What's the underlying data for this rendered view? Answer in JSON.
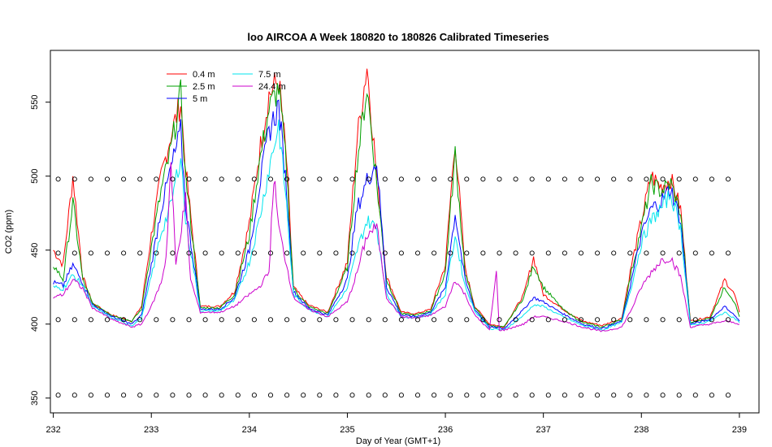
{
  "chart_data": {
    "type": "line",
    "title": "loo AIRCOA A  Week 180820 to 180826  Calibrated Timeseries",
    "xlabel": "Day of Year (GMT+1)",
    "ylabel": "CO2 (ppm)",
    "xlim": [
      231.97,
      239.2
    ],
    "ylim": [
      340,
      585
    ],
    "x_ticks": [
      "232",
      "233",
      "234",
      "235",
      "236",
      "237",
      "238",
      "239"
    ],
    "y_ticks": [
      "350",
      "400",
      "450",
      "500",
      "550"
    ],
    "grid": false,
    "legend_position": "top-left",
    "series": [
      {
        "name": "0.4 m",
        "color": "#ff0000",
        "points": [
          [
            232.0,
            450
          ],
          [
            232.1,
            440
          ],
          [
            232.2,
            500
          ],
          [
            232.3,
            432
          ],
          [
            232.4,
            414
          ],
          [
            232.6,
            406
          ],
          [
            232.8,
            402
          ],
          [
            232.9,
            412
          ],
          [
            233.0,
            460
          ],
          [
            233.1,
            500
          ],
          [
            233.2,
            528
          ],
          [
            233.3,
            550
          ],
          [
            233.35,
            505
          ],
          [
            233.5,
            412
          ],
          [
            233.7,
            412
          ],
          [
            233.85,
            422
          ],
          [
            234.0,
            468
          ],
          [
            234.1,
            515
          ],
          [
            234.2,
            555
          ],
          [
            234.3,
            565
          ],
          [
            234.38,
            510
          ],
          [
            234.45,
            425
          ],
          [
            234.6,
            413
          ],
          [
            234.8,
            408
          ],
          [
            235.0,
            442
          ],
          [
            235.1,
            525
          ],
          [
            235.2,
            575
          ],
          [
            235.3,
            500
          ],
          [
            235.4,
            432
          ],
          [
            235.55,
            408
          ],
          [
            235.7,
            407
          ],
          [
            235.85,
            410
          ],
          [
            236.0,
            440
          ],
          [
            236.1,
            525
          ],
          [
            236.2,
            438
          ],
          [
            236.3,
            412
          ],
          [
            236.45,
            400
          ],
          [
            236.6,
            398
          ],
          [
            236.8,
            420
          ],
          [
            236.9,
            445
          ],
          [
            237.0,
            420
          ],
          [
            237.2,
            410
          ],
          [
            237.4,
            402
          ],
          [
            237.6,
            399
          ],
          [
            237.8,
            404
          ],
          [
            237.9,
            440
          ],
          [
            238.0,
            470
          ],
          [
            238.1,
            500
          ],
          [
            238.2,
            493
          ],
          [
            238.3,
            498
          ],
          [
            238.4,
            478
          ],
          [
            238.5,
            402
          ],
          [
            238.7,
            405
          ],
          [
            238.85,
            430
          ],
          [
            238.95,
            420
          ],
          [
            239.0,
            408
          ]
        ]
      },
      {
        "name": "2.5 m",
        "color": "#00a000",
        "points": [
          [
            232.0,
            440
          ],
          [
            232.1,
            430
          ],
          [
            232.2,
            482
          ],
          [
            232.3,
            430
          ],
          [
            232.4,
            414
          ],
          [
            232.6,
            406
          ],
          [
            232.8,
            402
          ],
          [
            232.9,
            410
          ],
          [
            233.0,
            452
          ],
          [
            233.1,
            490
          ],
          [
            233.2,
            518
          ],
          [
            233.3,
            555
          ],
          [
            233.35,
            500
          ],
          [
            233.5,
            411
          ],
          [
            233.7,
            411
          ],
          [
            233.85,
            420
          ],
          [
            234.0,
            460
          ],
          [
            234.1,
            508
          ],
          [
            234.2,
            545
          ],
          [
            234.3,
            560
          ],
          [
            234.38,
            505
          ],
          [
            234.45,
            424
          ],
          [
            234.6,
            412
          ],
          [
            234.8,
            407
          ],
          [
            235.0,
            438
          ],
          [
            235.1,
            510
          ],
          [
            235.2,
            560
          ],
          [
            235.3,
            495
          ],
          [
            235.4,
            430
          ],
          [
            235.55,
            407
          ],
          [
            235.7,
            406
          ],
          [
            235.85,
            409
          ],
          [
            236.0,
            435
          ],
          [
            236.1,
            515
          ],
          [
            236.2,
            435
          ],
          [
            236.3,
            411
          ],
          [
            236.45,
            399
          ],
          [
            236.6,
            398
          ],
          [
            236.8,
            418
          ],
          [
            236.9,
            440
          ],
          [
            237.0,
            425
          ],
          [
            237.2,
            410
          ],
          [
            237.4,
            401
          ],
          [
            237.6,
            398
          ],
          [
            237.8,
            403
          ],
          [
            237.9,
            436
          ],
          [
            238.0,
            465
          ],
          [
            238.1,
            495
          ],
          [
            238.2,
            490
          ],
          [
            238.3,
            495
          ],
          [
            238.4,
            475
          ],
          [
            238.5,
            401
          ],
          [
            238.7,
            404
          ],
          [
            238.85,
            425
          ],
          [
            238.95,
            415
          ],
          [
            239.0,
            405
          ]
        ]
      },
      {
        "name": "5 m",
        "color": "#0000ff",
        "points": [
          [
            232.0,
            428
          ],
          [
            232.1,
            426
          ],
          [
            232.2,
            440
          ],
          [
            232.3,
            428
          ],
          [
            232.4,
            413
          ],
          [
            232.6,
            405
          ],
          [
            232.8,
            400
          ],
          [
            232.9,
            406
          ],
          [
            233.0,
            440
          ],
          [
            233.1,
            478
          ],
          [
            233.2,
            505
          ],
          [
            233.3,
            530
          ],
          [
            233.35,
            480
          ],
          [
            233.5,
            410
          ],
          [
            233.7,
            410
          ],
          [
            233.85,
            418
          ],
          [
            234.0,
            450
          ],
          [
            234.1,
            492
          ],
          [
            234.2,
            530
          ],
          [
            234.3,
            548
          ],
          [
            234.38,
            490
          ],
          [
            234.45,
            422
          ],
          [
            234.6,
            411
          ],
          [
            234.8,
            406
          ],
          [
            235.0,
            430
          ],
          [
            235.1,
            478
          ],
          [
            235.2,
            497
          ],
          [
            235.3,
            510
          ],
          [
            235.4,
            425
          ],
          [
            235.55,
            406
          ],
          [
            235.7,
            405
          ],
          [
            235.85,
            408
          ],
          [
            236.0,
            425
          ],
          [
            236.1,
            475
          ],
          [
            236.2,
            430
          ],
          [
            236.3,
            410
          ],
          [
            236.45,
            398
          ],
          [
            236.6,
            397
          ],
          [
            236.8,
            410
          ],
          [
            236.9,
            418
          ],
          [
            237.0,
            415
          ],
          [
            237.2,
            407
          ],
          [
            237.4,
            400
          ],
          [
            237.6,
            397
          ],
          [
            237.8,
            402
          ],
          [
            237.9,
            430
          ],
          [
            238.0,
            460
          ],
          [
            238.1,
            478
          ],
          [
            238.2,
            483
          ],
          [
            238.3,
            492
          ],
          [
            238.4,
            470
          ],
          [
            238.5,
            400
          ],
          [
            238.7,
            403
          ],
          [
            238.85,
            412
          ],
          [
            238.95,
            406
          ],
          [
            239.0,
            402
          ]
        ]
      },
      {
        "name": "7.5 m",
        "color": "#00e5ee",
        "points": [
          [
            232.0,
            425
          ],
          [
            232.1,
            424
          ],
          [
            232.2,
            433
          ],
          [
            232.3,
            426
          ],
          [
            232.4,
            412
          ],
          [
            232.6,
            404
          ],
          [
            232.8,
            399
          ],
          [
            232.9,
            404
          ],
          [
            233.0,
            432
          ],
          [
            233.1,
            462
          ],
          [
            233.2,
            480
          ],
          [
            233.3,
            515
          ],
          [
            233.35,
            470
          ],
          [
            233.5,
            409
          ],
          [
            233.7,
            409
          ],
          [
            233.85,
            416
          ],
          [
            234.0,
            442
          ],
          [
            234.1,
            470
          ],
          [
            234.2,
            505
          ],
          [
            234.3,
            535
          ],
          [
            234.38,
            480
          ],
          [
            234.45,
            420
          ],
          [
            234.6,
            410
          ],
          [
            234.8,
            405
          ],
          [
            235.0,
            424
          ],
          [
            235.1,
            450
          ],
          [
            235.2,
            470
          ],
          [
            235.3,
            465
          ],
          [
            235.4,
            420
          ],
          [
            235.55,
            405
          ],
          [
            235.7,
            404
          ],
          [
            235.85,
            407
          ],
          [
            236.0,
            420
          ],
          [
            236.1,
            460
          ],
          [
            236.2,
            426
          ],
          [
            236.3,
            409
          ],
          [
            236.45,
            397
          ],
          [
            236.6,
            396
          ],
          [
            236.8,
            406
          ],
          [
            236.9,
            413
          ],
          [
            237.0,
            412
          ],
          [
            237.2,
            405
          ],
          [
            237.4,
            399
          ],
          [
            237.6,
            396
          ],
          [
            237.8,
            401
          ],
          [
            237.9,
            426
          ],
          [
            238.0,
            455
          ],
          [
            238.1,
            470
          ],
          [
            238.2,
            478
          ],
          [
            238.3,
            488
          ],
          [
            238.4,
            465
          ],
          [
            238.5,
            399
          ],
          [
            238.7,
            402
          ],
          [
            238.85,
            408
          ],
          [
            238.95,
            404
          ],
          [
            239.0,
            401
          ]
        ]
      },
      {
        "name": "24.4 m",
        "color": "#cc00cc",
        "points": [
          [
            232.0,
            418
          ],
          [
            232.1,
            420
          ],
          [
            232.2,
            430
          ],
          [
            232.3,
            424
          ],
          [
            232.4,
            411
          ],
          [
            232.6,
            403
          ],
          [
            232.8,
            398
          ],
          [
            232.9,
            400
          ],
          [
            233.0,
            412
          ],
          [
            233.1,
            428
          ],
          [
            233.15,
            445
          ],
          [
            233.2,
            508
          ],
          [
            233.25,
            440
          ],
          [
            233.35,
            485
          ],
          [
            233.4,
            430
          ],
          [
            233.5,
            408
          ],
          [
            233.7,
            408
          ],
          [
            233.85,
            412
          ],
          [
            234.0,
            420
          ],
          [
            234.1,
            425
          ],
          [
            234.2,
            435
          ],
          [
            234.25,
            500
          ],
          [
            234.3,
            465
          ],
          [
            234.38,
            440
          ],
          [
            234.45,
            418
          ],
          [
            234.6,
            410
          ],
          [
            234.8,
            405
          ],
          [
            235.0,
            415
          ],
          [
            235.1,
            435
          ],
          [
            235.2,
            460
          ],
          [
            235.3,
            466
          ],
          [
            235.4,
            418
          ],
          [
            235.55,
            405
          ],
          [
            235.7,
            404
          ],
          [
            235.85,
            406
          ],
          [
            236.0,
            412
          ],
          [
            236.1,
            430
          ],
          [
            236.2,
            420
          ],
          [
            236.3,
            406
          ],
          [
            236.45,
            396
          ],
          [
            236.52,
            435
          ],
          [
            236.55,
            396
          ],
          [
            236.6,
            396
          ],
          [
            236.8,
            400
          ],
          [
            236.9,
            405
          ],
          [
            237.0,
            405
          ],
          [
            237.2,
            402
          ],
          [
            237.4,
            398
          ],
          [
            237.6,
            395
          ],
          [
            237.8,
            398
          ],
          [
            237.9,
            410
          ],
          [
            238.0,
            425
          ],
          [
            238.1,
            435
          ],
          [
            238.2,
            443
          ],
          [
            238.3,
            445
          ],
          [
            238.4,
            432
          ],
          [
            238.5,
            398
          ],
          [
            238.7,
            400
          ],
          [
            238.85,
            402
          ],
          [
            238.95,
            401
          ],
          [
            239.0,
            400
          ]
        ]
      }
    ],
    "marker_series": {
      "marker": "open-circle",
      "levels": [
        352,
        403,
        448,
        498
      ],
      "x_start": 232.05,
      "x_step": 0.1667,
      "x_end": 239.0
    }
  }
}
